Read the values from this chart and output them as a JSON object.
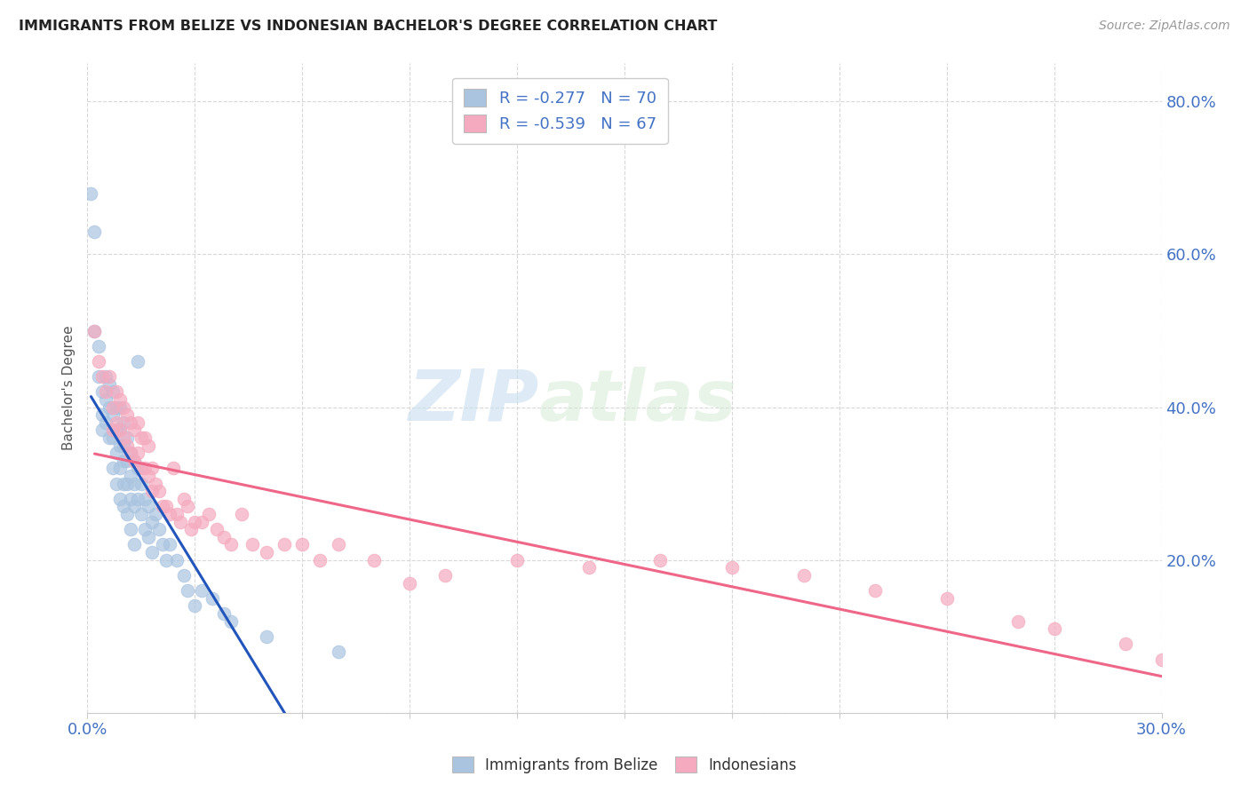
{
  "title": "IMMIGRANTS FROM BELIZE VS INDONESIAN BACHELOR'S DEGREE CORRELATION CHART",
  "source": "Source: ZipAtlas.com",
  "legend_label1": "Immigrants from Belize",
  "legend_label2": "Indonesians",
  "legend_r1": "-0.277",
  "legend_n1": "70",
  "legend_r2": "-0.539",
  "legend_n2": "67",
  "watermark_zip": "ZIP",
  "watermark_atlas": "atlas",
  "belize_color": "#aac4e0",
  "indonesian_color": "#f5aabf",
  "belize_line_color": "#2255bb",
  "indonesian_line_color": "#ee6688",
  "belize_x": [
    0.001,
    0.002,
    0.002,
    0.003,
    0.003,
    0.004,
    0.004,
    0.004,
    0.005,
    0.005,
    0.005,
    0.006,
    0.006,
    0.006,
    0.007,
    0.007,
    0.007,
    0.007,
    0.008,
    0.008,
    0.008,
    0.008,
    0.009,
    0.009,
    0.009,
    0.009,
    0.009,
    0.01,
    0.01,
    0.01,
    0.01,
    0.01,
    0.011,
    0.011,
    0.011,
    0.011,
    0.012,
    0.012,
    0.012,
    0.012,
    0.013,
    0.013,
    0.013,
    0.013,
    0.014,
    0.014,
    0.014,
    0.015,
    0.015,
    0.016,
    0.016,
    0.017,
    0.017,
    0.018,
    0.018,
    0.019,
    0.02,
    0.021,
    0.022,
    0.023,
    0.025,
    0.027,
    0.028,
    0.03,
    0.032,
    0.035,
    0.038,
    0.04,
    0.05,
    0.07
  ],
  "belize_y": [
    0.68,
    0.63,
    0.5,
    0.48,
    0.44,
    0.42,
    0.39,
    0.37,
    0.44,
    0.41,
    0.38,
    0.43,
    0.4,
    0.36,
    0.42,
    0.39,
    0.36,
    0.32,
    0.4,
    0.37,
    0.34,
    0.3,
    0.4,
    0.37,
    0.35,
    0.32,
    0.28,
    0.38,
    0.35,
    0.33,
    0.3,
    0.27,
    0.36,
    0.33,
    0.3,
    0.26,
    0.34,
    0.31,
    0.28,
    0.24,
    0.33,
    0.3,
    0.27,
    0.22,
    0.46,
    0.32,
    0.28,
    0.3,
    0.26,
    0.28,
    0.24,
    0.27,
    0.23,
    0.25,
    0.21,
    0.26,
    0.24,
    0.22,
    0.2,
    0.22,
    0.2,
    0.18,
    0.16,
    0.14,
    0.16,
    0.15,
    0.13,
    0.12,
    0.1,
    0.08
  ],
  "indonesian_x": [
    0.002,
    0.003,
    0.004,
    0.005,
    0.006,
    0.007,
    0.007,
    0.008,
    0.008,
    0.009,
    0.009,
    0.01,
    0.01,
    0.011,
    0.011,
    0.012,
    0.012,
    0.013,
    0.013,
    0.014,
    0.014,
    0.015,
    0.015,
    0.016,
    0.016,
    0.017,
    0.017,
    0.018,
    0.018,
    0.019,
    0.02,
    0.021,
    0.022,
    0.023,
    0.024,
    0.025,
    0.026,
    0.027,
    0.028,
    0.029,
    0.03,
    0.032,
    0.034,
    0.036,
    0.038,
    0.04,
    0.043,
    0.046,
    0.05,
    0.055,
    0.06,
    0.065,
    0.07,
    0.08,
    0.09,
    0.1,
    0.12,
    0.14,
    0.16,
    0.18,
    0.2,
    0.22,
    0.24,
    0.26,
    0.27,
    0.29,
    0.3
  ],
  "indonesian_y": [
    0.5,
    0.46,
    0.44,
    0.42,
    0.44,
    0.4,
    0.37,
    0.42,
    0.38,
    0.41,
    0.37,
    0.4,
    0.36,
    0.39,
    0.35,
    0.38,
    0.34,
    0.37,
    0.33,
    0.38,
    0.34,
    0.36,
    0.32,
    0.36,
    0.32,
    0.35,
    0.31,
    0.32,
    0.29,
    0.3,
    0.29,
    0.27,
    0.27,
    0.26,
    0.32,
    0.26,
    0.25,
    0.28,
    0.27,
    0.24,
    0.25,
    0.25,
    0.26,
    0.24,
    0.23,
    0.22,
    0.26,
    0.22,
    0.21,
    0.22,
    0.22,
    0.2,
    0.22,
    0.2,
    0.17,
    0.18,
    0.2,
    0.19,
    0.2,
    0.19,
    0.18,
    0.16,
    0.15,
    0.12,
    0.11,
    0.09,
    0.07
  ],
  "xlim": [
    0.0,
    0.3
  ],
  "ylim": [
    0.0,
    0.85
  ],
  "yticks": [
    0.0,
    0.2,
    0.4,
    0.6,
    0.8
  ],
  "ytick_labels": [
    "",
    "20.0%",
    "40.0%",
    "60.0%",
    "80.0%"
  ],
  "xtick_left_label": "0.0%",
  "xtick_right_label": "30.0%",
  "grid_color": "#d8d8d8",
  "background_color": "#ffffff",
  "title_color": "#222222",
  "axis_label_color": "#4472c4",
  "ylabel": "Bachelor's Degree",
  "belize_line_xstart": 0.001,
  "belize_line_xend": 0.075,
  "indonesian_line_xstart": 0.002,
  "indonesian_line_xend": 0.3
}
